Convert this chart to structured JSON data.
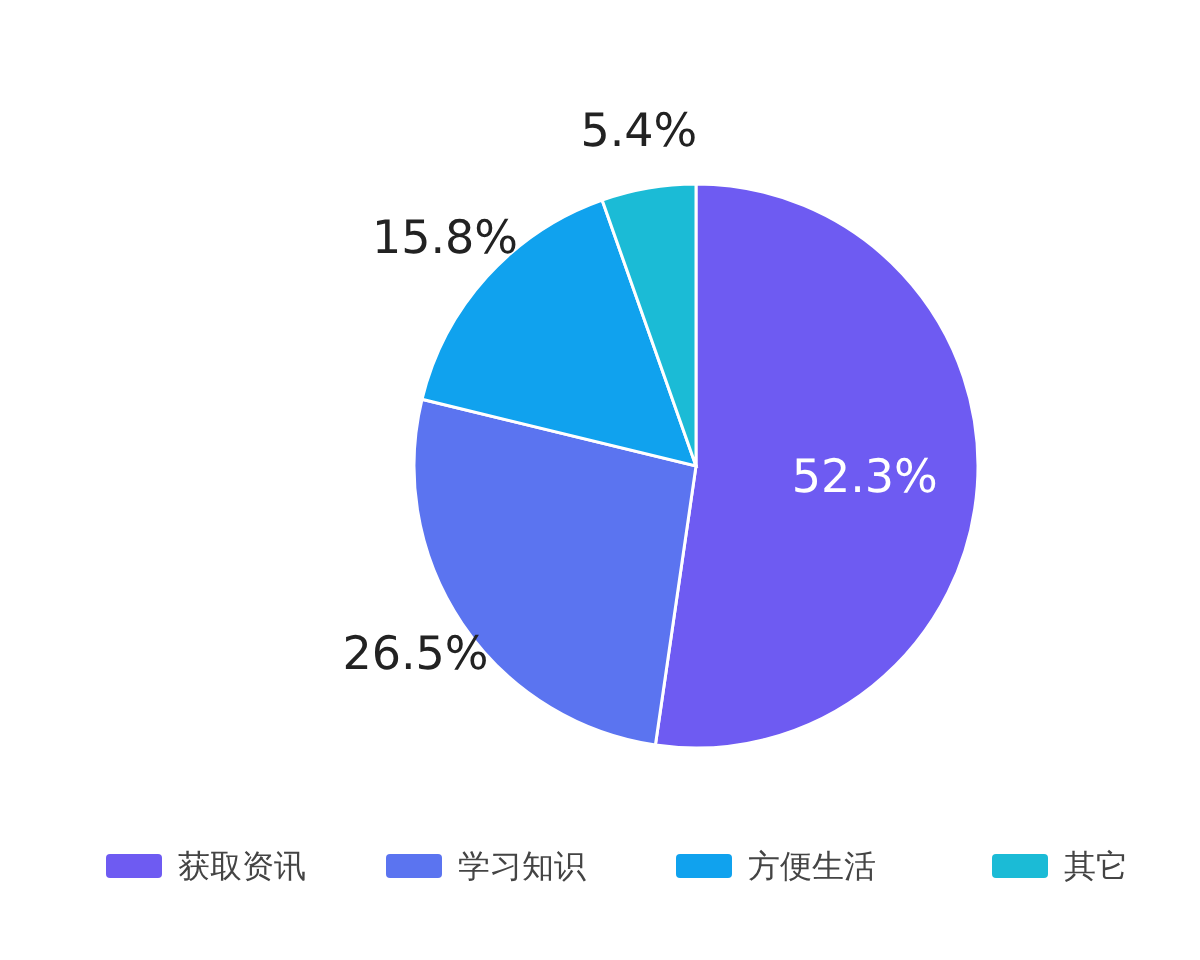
{
  "chart_data": {
    "type": "pie",
    "categories": [
      "获取资讯",
      "学习知识",
      "方便生活",
      "其它"
    ],
    "values": [
      52.3,
      26.5,
      15.8,
      5.4
    ],
    "value_labels": [
      "52.3%",
      "26.5%",
      "15.8%",
      "5.4%"
    ],
    "colors": [
      "#6e5bf2",
      "#5b74f0",
      "#10a2ee",
      "#1bbbd6"
    ],
    "legend": "bottom"
  }
}
